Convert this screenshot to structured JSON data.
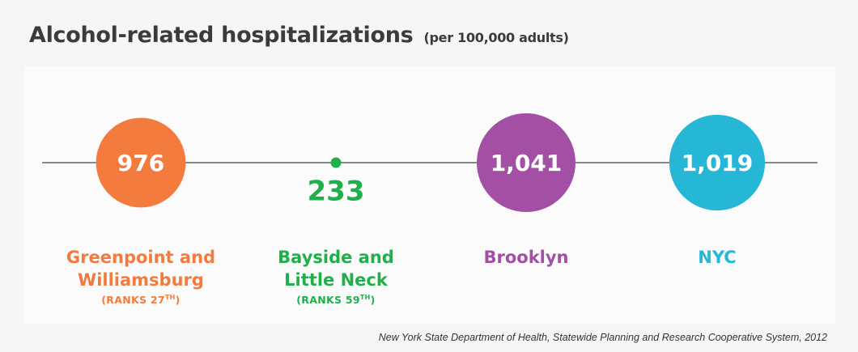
{
  "title": "Alcohol-related hospitalizations",
  "subtitle": "(per 100,000 adults)",
  "source": "New York State Department of Health, Statewide Planning and Research Cooperative System, 2012",
  "chart_data": {
    "type": "bubble",
    "title": "Alcohol-related hospitalizations",
    "subtitle": "(per 100,000 adults)",
    "categories": [
      "Greenpoint and Williamsburg",
      "Bayside and Little Neck",
      "Brooklyn",
      "NYC"
    ],
    "values": [
      976,
      233,
      1041,
      1019
    ],
    "value_labels": [
      "976",
      "233",
      "1,041",
      "1,019"
    ],
    "label_lines": [
      [
        "Greenpoint and",
        "Williamsburg"
      ],
      [
        "Bayside and",
        "Little Neck"
      ],
      [
        "Brooklyn"
      ],
      [
        "NYC"
      ]
    ],
    "ranks": [
      "RANKS 27",
      "RANKS 59",
      "",
      ""
    ],
    "rank_suffix": "TH",
    "colors": [
      "#f47b3e",
      "#1fb04b",
      "#a34fa3",
      "#27b7d6"
    ],
    "grid": false,
    "legend": "none"
  }
}
